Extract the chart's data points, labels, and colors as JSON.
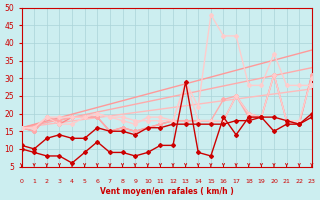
{
  "title": "",
  "xlabel": "Vent moyen/en rafales ( km/h )",
  "ylabel": "",
  "bg_color": "#cceef0",
  "grid_color": "#aad4d8",
  "xlim": [
    0,
    23
  ],
  "ylim": [
    5,
    50
  ],
  "yticks": [
    5,
    10,
    15,
    20,
    25,
    30,
    35,
    40,
    45,
    50
  ],
  "xticks": [
    0,
    1,
    2,
    3,
    4,
    5,
    6,
    7,
    8,
    9,
    10,
    11,
    12,
    13,
    14,
    15,
    16,
    17,
    18,
    19,
    20,
    21,
    22,
    23
  ],
  "lines": [
    {
      "x": [
        0,
        1,
        2,
        3,
        4,
        5,
        6,
        7,
        8,
        9,
        10,
        11,
        12,
        13,
        14,
        15,
        16,
        17,
        18,
        19,
        20,
        21,
        22,
        23
      ],
      "y": [
        10,
        9,
        8,
        8,
        6,
        9,
        12,
        9,
        9,
        8,
        9,
        11,
        11,
        29,
        9,
        8,
        19,
        14,
        19,
        19,
        15,
        17,
        17,
        20
      ],
      "color": "#cc0000",
      "lw": 1.0,
      "marker": "D",
      "ms": 2.0,
      "zorder": 5
    },
    {
      "x": [
        0,
        1,
        2,
        3,
        4,
        5,
        6,
        7,
        8,
        9,
        10,
        11,
        12,
        13,
        14,
        15,
        16,
        17,
        18,
        19,
        20,
        21,
        22,
        23
      ],
      "y": [
        11,
        10,
        13,
        14,
        13,
        13,
        16,
        15,
        15,
        14,
        16,
        16,
        17,
        17,
        17,
        17,
        17,
        18,
        18,
        19,
        19,
        18,
        17,
        19
      ],
      "color": "#cc0000",
      "lw": 1.0,
      "marker": "D",
      "ms": 2.0,
      "zorder": 4
    },
    {
      "x": [
        0,
        23
      ],
      "y": [
        16,
        27
      ],
      "color": "#ffbbbb",
      "lw": 1.0,
      "marker": null,
      "ms": 0,
      "zorder": 2
    },
    {
      "x": [
        0,
        23
      ],
      "y": [
        16,
        33
      ],
      "color": "#ffaaaa",
      "lw": 1.0,
      "marker": null,
      "ms": 0,
      "zorder": 2
    },
    {
      "x": [
        0,
        23
      ],
      "y": [
        16,
        38
      ],
      "color": "#ff9999",
      "lw": 1.0,
      "marker": null,
      "ms": 0,
      "zorder": 2
    },
    {
      "x": [
        0,
        1,
        2,
        3,
        4,
        5,
        6,
        7,
        8,
        9,
        10,
        11,
        12,
        13,
        14,
        15,
        16,
        17,
        18,
        19,
        20,
        21,
        22,
        23
      ],
      "y": [
        16,
        15,
        19,
        17,
        19,
        19,
        19,
        15,
        16,
        15,
        16,
        17,
        18,
        18,
        18,
        18,
        18,
        25,
        20,
        19,
        31,
        18,
        17,
        31
      ],
      "color": "#ff8888",
      "lw": 1.0,
      "marker": "D",
      "ms": 2.0,
      "zorder": 3
    },
    {
      "x": [
        0,
        1,
        2,
        3,
        4,
        5,
        6,
        7,
        8,
        9,
        10,
        11,
        12,
        13,
        14,
        15,
        16,
        17,
        18,
        19,
        20,
        21,
        22,
        23
      ],
      "y": [
        16,
        15,
        19,
        18,
        19,
        19,
        19,
        15,
        16,
        15,
        16,
        17,
        18,
        18,
        18,
        18,
        24,
        25,
        19,
        19,
        31,
        18,
        17,
        31
      ],
      "color": "#ffaaaa",
      "lw": 1.0,
      "marker": "D",
      "ms": 2.0,
      "zorder": 3
    },
    {
      "x": [
        0,
        1,
        2,
        3,
        4,
        5,
        6,
        7,
        8,
        9,
        10,
        11,
        12,
        13,
        14,
        15,
        16,
        17,
        18,
        19,
        20,
        21,
        22,
        23
      ],
      "y": [
        16,
        16,
        19,
        17,
        17,
        19,
        20,
        19,
        19,
        18,
        18,
        18,
        18,
        29,
        18,
        18,
        18,
        25,
        20,
        19,
        31,
        18,
        18,
        30
      ],
      "color": "#ffcccc",
      "lw": 1.0,
      "marker": "D",
      "ms": 2.0,
      "zorder": 3
    },
    {
      "x": [
        0,
        1,
        2,
        3,
        4,
        5,
        6,
        7,
        8,
        9,
        10,
        11,
        12,
        13,
        14,
        15,
        16,
        17,
        18,
        19,
        20,
        21,
        22,
        23
      ],
      "y": [
        16,
        16,
        19,
        19,
        19,
        19,
        20,
        19,
        18,
        17,
        19,
        19,
        18,
        29,
        22,
        48,
        42,
        42,
        28,
        28,
        37,
        28,
        28,
        28
      ],
      "color": "#ffcccc",
      "lw": 1.0,
      "marker": "D",
      "ms": 2.0,
      "zorder": 3
    }
  ],
  "arrow_color": "#cc0000"
}
